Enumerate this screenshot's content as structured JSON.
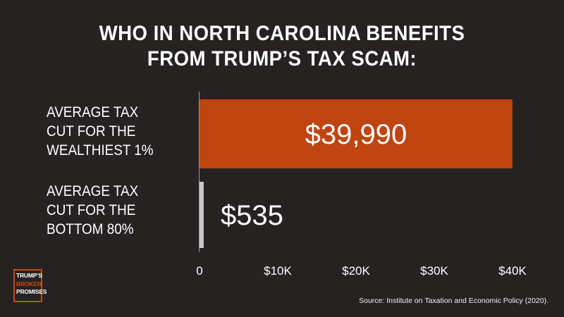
{
  "title_lines": [
    "WHO IN NORTH CAROLINA BENEFITS",
    "FROM TRUMP’S TAX SCAM:"
  ],
  "source": "Source: Institute on Taxation and Economic Policy (2020).",
  "logo": {
    "line1": "TRUMP’S",
    "line2": "BROKEN",
    "line3": "PROMISES"
  },
  "colors": {
    "background": "#252221",
    "bar_top": "#c0440f",
    "bar_bottom": "#c8c8c8",
    "text": "#ffffff",
    "axis": "#9a9a9a"
  },
  "chart_data": {
    "type": "bar",
    "orientation": "horizontal",
    "title": "WHO IN NORTH CAROLINA BENEFITS FROM TRUMP’S TAX SCAM:",
    "categories": [
      "AVERAGE TAX\nCUT FOR THE\nWEALTHIEST 1%",
      "AVERAGE TAX\nCUT FOR THE\nBOTTOM 80%"
    ],
    "values": [
      39990,
      535
    ],
    "value_labels": [
      "$39,990",
      "$535"
    ],
    "xlim": [
      0,
      40000
    ],
    "ticks": [
      0,
      10000,
      20000,
      30000,
      40000
    ],
    "tick_labels": [
      "0",
      "$10K",
      "$20K",
      "$30K",
      "$40K"
    ],
    "grid": false
  }
}
